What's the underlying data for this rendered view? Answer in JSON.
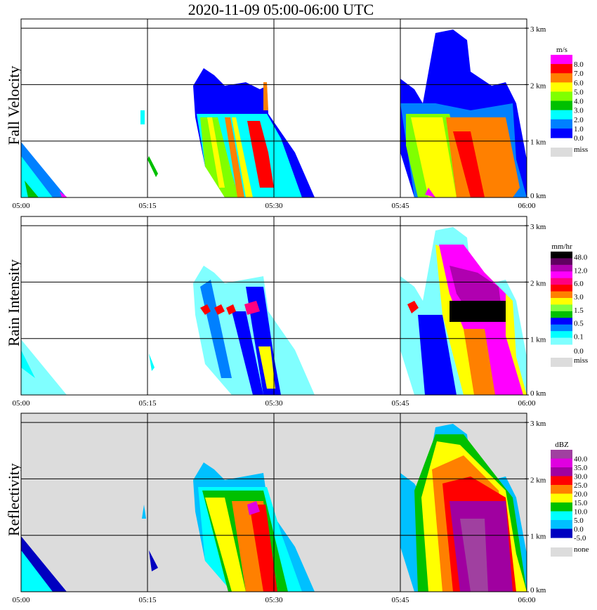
{
  "title": "2020-11-09   05:00-06:00 UTC",
  "chart_data": {
    "type": "heatmap",
    "title": "2020-11-09   05:00-06:00 UTC",
    "x_ticks": [
      "05:00",
      "05:15",
      "05:30",
      "05:45",
      "06:00"
    ],
    "y_ticks": [
      "0 km",
      "1 km",
      "2 km",
      "3 km"
    ],
    "xlim": [
      "05:00",
      "06:00"
    ],
    "ylim_km": [
      0,
      3.2
    ],
    "grid": true,
    "panels": [
      {
        "name": "Fall Velocity",
        "unit": "m/s",
        "colors": [
          "#ff00ff",
          "#ff0000",
          "#ff8000",
          "#ffff00",
          "#80ff00",
          "#00c000",
          "#00ffff",
          "#0080ff",
          "#0000ff"
        ],
        "labels": [
          "8.0",
          "7.0",
          "6.0",
          "5.0",
          "4.0",
          "3.0",
          "2.0",
          "1.0",
          "0.0"
        ],
        "missing_label": "miss",
        "background": "#ffffff"
      },
      {
        "name": "Rain Intensity",
        "unit": "mm/hr",
        "colors": [
          "#000000",
          "#600060",
          "#b000b0",
          "#ff00ff",
          "#ff0080",
          "#ff0000",
          "#ff8000",
          "#ffff00",
          "#80ff40",
          "#00c000",
          "#0000ff",
          "#0080ff",
          "#00ffff",
          "#80ffff"
        ],
        "labels": [
          "48.0",
          "12.0",
          "6.0",
          "3.0",
          "1.5",
          "0.5",
          "0.1",
          "0.0"
        ],
        "missing_label": "miss",
        "background": "#ffffff"
      },
      {
        "name": "Reflectivity",
        "unit": "dBZ",
        "colors": [
          "#a040a0",
          "#e000e0",
          "#a000a0",
          "#ff0000",
          "#ff8000",
          "#ffff00",
          "#00c000",
          "#00ffff",
          "#00c0ff",
          "#0000c0"
        ],
        "labels": [
          "40.0",
          "35.0",
          "30.0",
          "25.0",
          "20.0",
          "15.0",
          "10.0",
          "5.0",
          "0.0",
          "-5.0"
        ],
        "missing_label": "none",
        "background": "#dcdcdc"
      }
    ]
  }
}
